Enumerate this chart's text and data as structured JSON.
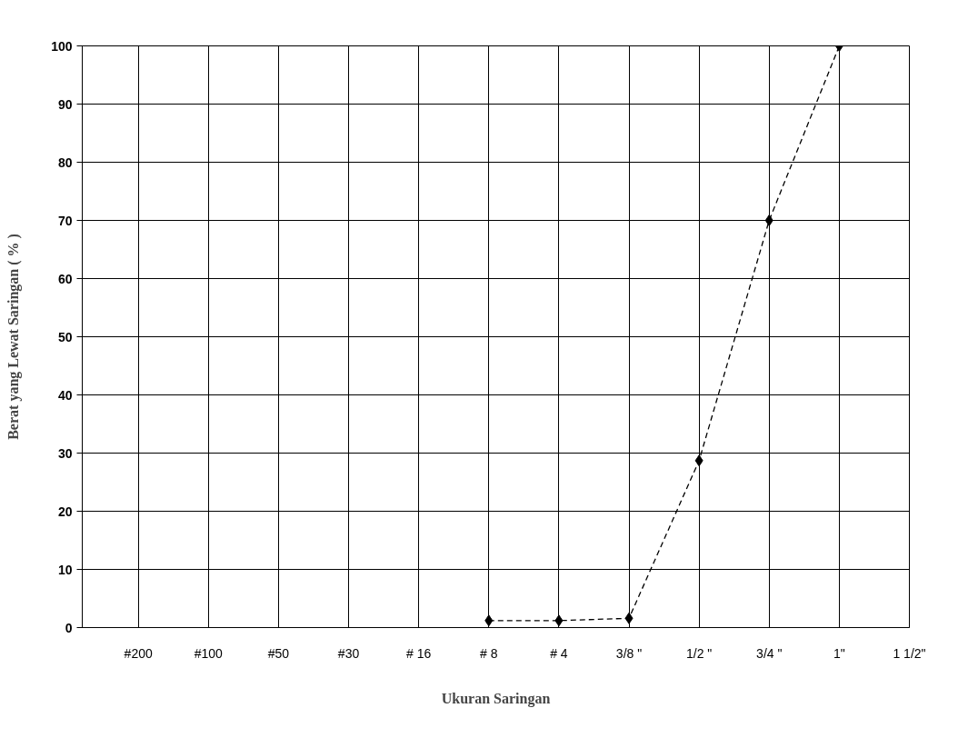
{
  "chart_data": {
    "type": "line",
    "xlabel": "Ukuran Saringan",
    "ylabel": "Berat yang Lewat Saringan ( % )",
    "categories": [
      "#200",
      "#100",
      "#50",
      "#30",
      "# 16",
      "# 8",
      "# 4",
      "3/8 \"",
      "1/2 \"",
      "3/4 \"",
      "1\"",
      "1 1/2\""
    ],
    "series": [
      {
        "color": "#000000",
        "values": [
          null,
          null,
          null,
          null,
          null,
          1.2,
          1.2,
          1.6,
          28.7,
          70.0,
          100,
          null
        ]
      }
    ],
    "ylim": [
      0,
      100
    ],
    "yticks": [
      0,
      10,
      20,
      30,
      40,
      50,
      60,
      70,
      80,
      90,
      100
    ],
    "grid": true,
    "marker": "diamond",
    "line_style": "dashed"
  }
}
